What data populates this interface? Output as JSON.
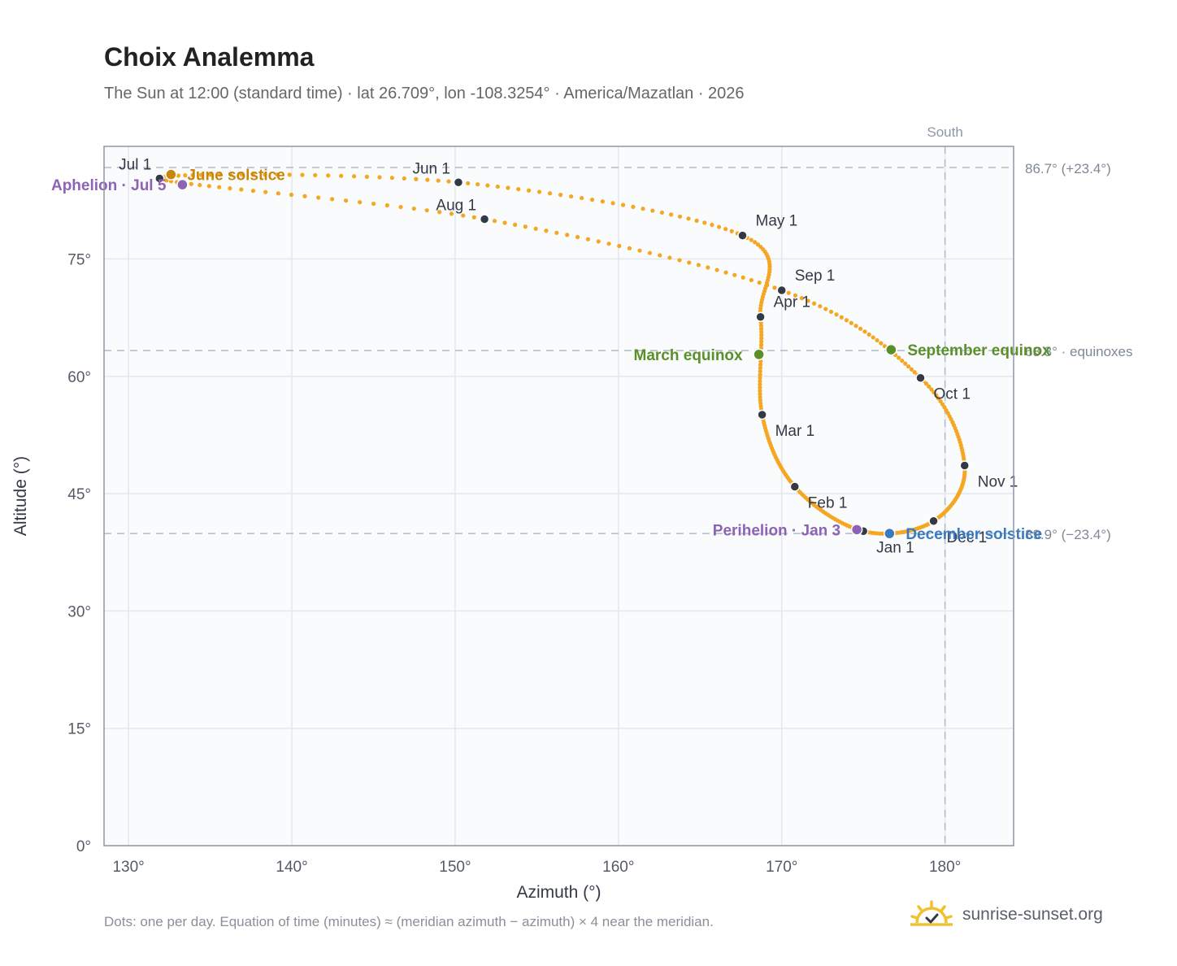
{
  "header": {
    "title": "Choix Analemma",
    "subtitle": "The Sun at 12:00 (standard time) · lat 26.709°, lon -108.3254° · America/Mazatlan · 2026"
  },
  "footer": {
    "note": "Dots: one per day. Equation of time (minutes) ≈ (meridian azimuth − azimuth) × 4 near the meridian.",
    "brand": "sunrise-sunset.org"
  },
  "colors": {
    "curve": "#f5a623",
    "month_marker": "#333a45",
    "solstice_june": "#c8860a",
    "solstice_december": "#3a7bbf",
    "equinox": "#5a8f2a",
    "apsis": "#8e62b5",
    "reference_line": "#b0bcc8",
    "grid": "#e3e8ee",
    "plot_background": "#f9fbfd"
  },
  "chart_data": {
    "type": "scatter",
    "xlabel": "Azimuth (°)",
    "ylabel": "Altitude (°)",
    "xlim": [
      128.5,
      184.2
    ],
    "ylim": [
      0,
      89.4
    ],
    "x_ticks": [
      130,
      140,
      150,
      160,
      170,
      180
    ],
    "x_tick_labels": [
      "130°",
      "140°",
      "150°",
      "160°",
      "170°",
      "180°"
    ],
    "y_ticks": [
      0,
      15,
      30,
      45,
      60,
      75
    ],
    "y_tick_labels": [
      "0°",
      "15°",
      "30°",
      "45°",
      "60°",
      "75°"
    ],
    "grid": true,
    "meridian": {
      "azimuth": 180,
      "label": "South"
    },
    "reference_lines": [
      {
        "altitude": 86.7,
        "label": "86.7° (+23.4°)"
      },
      {
        "altitude": 63.3,
        "label": "63.3° · equinoxes"
      },
      {
        "altitude": 39.9,
        "label": "39.9° (−23.4°)"
      }
    ],
    "month_markers": [
      {
        "label": "Jan 1",
        "azimuth": 175.0,
        "altitude": 40.2
      },
      {
        "label": "Feb 1",
        "azimuth": 170.8,
        "altitude": 45.9
      },
      {
        "label": "Mar 1",
        "azimuth": 168.8,
        "altitude": 55.1
      },
      {
        "label": "Apr 1",
        "azimuth": 168.7,
        "altitude": 67.6
      },
      {
        "label": "May 1",
        "azimuth": 167.6,
        "altitude": 78.0
      },
      {
        "label": "Jun 1",
        "azimuth": 150.2,
        "altitude": 84.8
      },
      {
        "label": "Jul 1",
        "azimuth": 131.9,
        "altitude": 85.3
      },
      {
        "label": "Aug 1",
        "azimuth": 151.8,
        "altitude": 80.1
      },
      {
        "label": "Sep 1",
        "azimuth": 170.0,
        "altitude": 71.0
      },
      {
        "label": "Oct 1",
        "azimuth": 178.5,
        "altitude": 59.8
      },
      {
        "label": "Nov 1",
        "azimuth": 181.2,
        "altitude": 48.6
      },
      {
        "label": "Dec 1",
        "azimuth": 179.3,
        "altitude": 41.5
      }
    ],
    "events": [
      {
        "label": "June solstice",
        "kind": "solstice",
        "azimuth": 132.6,
        "altitude": 85.8
      },
      {
        "label": "December solstice",
        "kind": "solstice",
        "azimuth": 176.6,
        "altitude": 39.9
      },
      {
        "label": "March equinox",
        "kind": "equinox",
        "azimuth": 168.6,
        "altitude": 62.8
      },
      {
        "label": "September equinox",
        "kind": "equinox",
        "azimuth": 176.7,
        "altitude": 63.4
      },
      {
        "label": "Aphelion · Jul 5",
        "kind": "apsis",
        "azimuth": 133.3,
        "altitude": 84.5
      },
      {
        "label": "Perihelion · Jan 3",
        "kind": "apsis",
        "azimuth": 174.6,
        "altitude": 40.4
      }
    ]
  }
}
